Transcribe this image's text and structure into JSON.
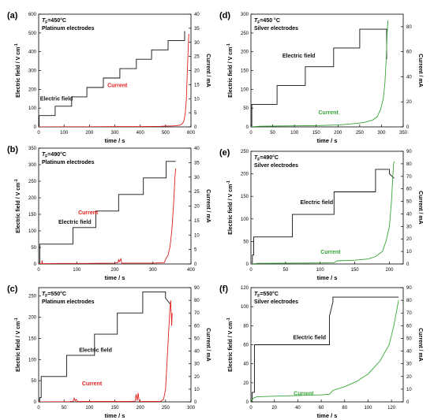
{
  "figure": {
    "colors": {
      "field": "#111111",
      "current_pt": "#e0201b",
      "current_ag": "#35a535",
      "axes": "#000000"
    },
    "time_label": "time / s",
    "time_label_short": "time / s"
  },
  "chart_data": [
    {
      "type": "line",
      "panel": "(a)",
      "temp_prefix": "T",
      "temp_sub": "F",
      "temp_rest": "=450°C",
      "electrode": "Platinum electrodes",
      "xlabel": "time / s",
      "ylabel": "Electric field / V cm",
      "ylabel_sup": "-1",
      "y2label": "Current / mA",
      "xlim": [
        0,
        600
      ],
      "xticks": [
        0,
        100,
        200,
        300,
        400,
        500,
        600
      ],
      "ylim": [
        0,
        600
      ],
      "yticks": [
        0,
        100,
        200,
        300,
        400,
        500,
        600
      ],
      "y2lim": [
        0,
        40
      ],
      "y2ticks": [
        0,
        5,
        10,
        15,
        20,
        25,
        30,
        35,
        40
      ],
      "field_label": "Electric field",
      "current_label": "Current",
      "current_color": "#e0201b",
      "field": {
        "x": [
          0,
          2,
          2,
          65,
          65,
          130,
          130,
          190,
          190,
          255,
          255,
          320,
          320,
          385,
          385,
          445,
          445,
          510,
          510,
          575,
          575
        ],
        "y": [
          0,
          0,
          60,
          60,
          110,
          110,
          160,
          160,
          210,
          210,
          260,
          260,
          310,
          310,
          360,
          360,
          410,
          410,
          460,
          460,
          510
        ]
      },
      "current": {
        "x": [
          0,
          100,
          200,
          300,
          400,
          480,
          500,
          520,
          540,
          555,
          565,
          572,
          578,
          582,
          585,
          588,
          590,
          592
        ],
        "y": [
          0,
          0.05,
          0.05,
          0.1,
          0.1,
          0.2,
          0.3,
          0.3,
          0.4,
          0.6,
          1.0,
          2,
          5,
          10,
          18,
          25,
          30,
          33
        ]
      }
    },
    {
      "type": "line",
      "panel": "(b)",
      "temp_prefix": "T",
      "temp_sub": "F",
      "temp_rest": "=490°C",
      "electrode": "Platinum electrodes",
      "xlabel": "time / s",
      "ylabel": "Electric field / V cm",
      "ylabel_sup": "-1",
      "y2label": "Current / mA",
      "xlim": [
        0,
        400
      ],
      "xticks": [
        0,
        100,
        200,
        300,
        400
      ],
      "ylim": [
        0,
        350
      ],
      "yticks": [
        0,
        50,
        100,
        150,
        200,
        250,
        300,
        350
      ],
      "y2lim": [
        0,
        40
      ],
      "y2ticks": [
        0,
        5,
        10,
        15,
        20,
        25,
        30,
        35,
        40
      ],
      "field_label": "Electric field",
      "current_label": "Current",
      "current_color": "#e0201b",
      "field": {
        "x": [
          0,
          3,
          3,
          90,
          90,
          150,
          150,
          210,
          210,
          275,
          275,
          335,
          335,
          360
        ],
        "y": [
          0,
          0,
          60,
          60,
          110,
          110,
          160,
          160,
          210,
          210,
          260,
          260,
          310,
          310
        ]
      },
      "current": {
        "x": [
          0,
          8,
          9,
          10,
          11,
          60,
          120,
          200,
          208,
          210,
          212,
          216,
          218,
          220,
          300,
          330,
          335,
          340,
          345,
          350,
          355,
          358,
          360
        ],
        "y": [
          0,
          0.1,
          1.2,
          0.1,
          0.1,
          0.2,
          0.2,
          0.3,
          0.5,
          1.5,
          0.8,
          1.8,
          0.3,
          0.3,
          0.3,
          0.5,
          2,
          3,
          6,
          12,
          22,
          30,
          33
        ]
      }
    },
    {
      "type": "line",
      "panel": "(c)",
      "temp_prefix": "T",
      "temp_sub": "F",
      "temp_rest": "=550°C",
      "electrode": "Platinum electrodes",
      "xlabel": "time / s",
      "ylabel": "Electric field / V cm",
      "ylabel_sup": "-1",
      "y2label": "Current / mA",
      "xlim": [
        0,
        300
      ],
      "xticks": [
        0,
        50,
        100,
        150,
        200,
        250,
        300
      ],
      "ylim": [
        0,
        270
      ],
      "yticks": [
        0,
        50,
        100,
        150,
        200,
        250
      ],
      "y2lim": [
        0,
        90
      ],
      "y2ticks": [
        0,
        10,
        20,
        30,
        40,
        50,
        60,
        70,
        80,
        90
      ],
      "field_label": "Electric field",
      "current_label": "Current",
      "current_color": "#e0201b",
      "field": {
        "x": [
          0,
          2,
          2,
          5,
          5,
          55,
          55,
          110,
          110,
          155,
          155,
          205,
          205,
          250,
          250,
          260
        ],
        "y": [
          0,
          0,
          10,
          10,
          60,
          60,
          110,
          110,
          160,
          160,
          210,
          210,
          260,
          260,
          245,
          230
        ]
      },
      "current": {
        "x": [
          0,
          60,
          68,
          70,
          72,
          74,
          76,
          120,
          180,
          190,
          192,
          194,
          196,
          198,
          240,
          246,
          250,
          254,
          258,
          260,
          262,
          263
        ],
        "y": [
          0,
          0.2,
          0.5,
          3,
          1,
          2,
          0.3,
          0.3,
          0.3,
          0.5,
          6,
          1,
          7,
          0.3,
          0.3,
          2,
          10,
          40,
          70,
          80,
          60,
          70
        ]
      }
    },
    {
      "type": "line",
      "panel": "(d)",
      "temp_prefix": "T",
      "temp_sub": "F",
      "temp_rest": "=450 °C",
      "electrode": "Silver electrodes",
      "xlabel": "time / s",
      "ylabel": "Electric field / V cm",
      "ylabel_sup": "-1",
      "y2label": "Current / mA",
      "xlim": [
        0,
        350
      ],
      "xticks": [
        0,
        50,
        100,
        150,
        200,
        250,
        300,
        350
      ],
      "ylim": [
        0,
        300
      ],
      "yticks": [
        0,
        50,
        100,
        150,
        200,
        250,
        300
      ],
      "y2lim": [
        0,
        90
      ],
      "y2ticks": [
        0,
        20,
        40,
        60,
        80
      ],
      "field_label": "Electric field",
      "current_label": "Current",
      "current_color": "#35a535",
      "field": {
        "x": [
          0,
          2,
          2,
          60,
          60,
          125,
          125,
          190,
          190,
          250,
          250,
          312,
          312
        ],
        "y": [
          0,
          0,
          60,
          60,
          110,
          110,
          160,
          160,
          210,
          210,
          260,
          260,
          180
        ]
      },
      "current": {
        "x": [
          0,
          20,
          50,
          100,
          150,
          200,
          230,
          260,
          280,
          290,
          298,
          304,
          308,
          311,
          313,
          315
        ],
        "y": [
          0,
          0.5,
          0.6,
          0.8,
          1.0,
          1.5,
          2.3,
          3.5,
          5.5,
          8,
          14,
          22,
          35,
          55,
          75,
          85
        ]
      }
    },
    {
      "type": "line",
      "panel": "(e)",
      "temp_prefix": "T",
      "temp_sub": "F",
      "temp_rest": "=490°C",
      "electrode": "Silver electrodes",
      "xlabel": "time / s",
      "ylabel": "Electric field / V cm",
      "ylabel_sup": "-1",
      "y2label": "Current / mA",
      "xlim": [
        0,
        220
      ],
      "xticks": [
        0,
        50,
        100,
        150,
        200
      ],
      "ylim": [
        0,
        250
      ],
      "yticks": [
        0,
        50,
        100,
        150,
        200,
        250
      ],
      "y2lim": [
        0,
        90
      ],
      "y2ticks": [
        0,
        10,
        20,
        30,
        40,
        50,
        60,
        70,
        80,
        90
      ],
      "field_label": "Electric field",
      "current_label": "Current",
      "current_color": "#35a535",
      "field": {
        "x": [
          0,
          2,
          2,
          4,
          4,
          60,
          60,
          120,
          120,
          180,
          180,
          200,
          200,
          207
        ],
        "y": [
          0,
          0,
          20,
          20,
          60,
          60,
          110,
          110,
          160,
          160,
          210,
          210,
          200,
          190
        ]
      },
      "current": {
        "x": [
          0,
          10,
          50,
          100,
          120,
          125,
          150,
          170,
          180,
          190,
          195,
          200,
          203,
          205,
          206,
          207
        ],
        "y": [
          0,
          0.5,
          0.6,
          0.8,
          1.0,
          2.5,
          3,
          4,
          6,
          10,
          18,
          30,
          50,
          70,
          80,
          82
        ]
      }
    },
    {
      "type": "line",
      "panel": "(f)",
      "temp_prefix": "T",
      "temp_sub": "F",
      "temp_rest": "=550°C",
      "electrode": "Silver electrodes",
      "xlabel": "time / s",
      "ylabel": "Electric field / V cm",
      "ylabel_sup": "-1",
      "y2label": "Current / mA",
      "xlim": [
        0,
        130
      ],
      "xticks": [
        0,
        20,
        40,
        60,
        80,
        100,
        120
      ],
      "ylim": [
        0,
        120
      ],
      "yticks": [
        0,
        20,
        40,
        60,
        80,
        100,
        120
      ],
      "y2lim": [
        0,
        90
      ],
      "y2ticks": [
        0,
        10,
        20,
        30,
        40,
        50,
        60,
        70,
        80,
        90
      ],
      "field_label": "Electric field",
      "current_label": "Current",
      "current_color": "#35a535",
      "field": {
        "x": [
          0,
          1,
          1,
          3,
          3,
          67,
          67,
          70,
          70,
          126
        ],
        "y": [
          0,
          0,
          10,
          10,
          60,
          60,
          90,
          105,
          110,
          110
        ]
      },
      "current": {
        "x": [
          0,
          2,
          5,
          20,
          40,
          60,
          67,
          70,
          80,
          90,
          100,
          110,
          118,
          122,
          125,
          126
        ],
        "y": [
          0,
          3,
          4,
          4.5,
          5,
          5.5,
          6,
          9,
          12,
          16,
          22,
          32,
          45,
          60,
          75,
          80
        ]
      }
    }
  ]
}
